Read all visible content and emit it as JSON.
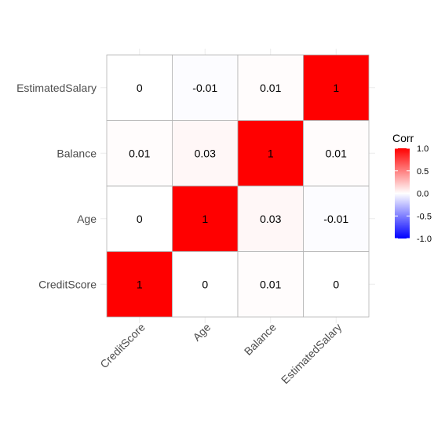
{
  "chart_data": {
    "type": "heatmap",
    "x_categories": [
      "CreditScore",
      "Age",
      "Balance",
      "EstimatedSalary"
    ],
    "y_categories": [
      "CreditScore",
      "Age",
      "Balance",
      "EstimatedSalary"
    ],
    "values": [
      [
        1,
        0,
        0.01,
        0
      ],
      [
        0,
        1,
        0.03,
        -0.01
      ],
      [
        0.01,
        0.03,
        1,
        0.01
      ],
      [
        0,
        -0.01,
        0.01,
        1
      ]
    ],
    "value_labels": [
      [
        "1",
        "0",
        "0.01",
        "0"
      ],
      [
        "0",
        "1",
        "0.03",
        "-0.01"
      ],
      [
        "0.01",
        "0.03",
        "1",
        "0.01"
      ],
      [
        "0",
        "-0.01",
        "0.01",
        "1"
      ]
    ],
    "legend": {
      "title": "Corr",
      "ticks": [
        "1.0",
        "0.5",
        "0.0",
        "-0.5",
        "-1.0"
      ],
      "tick_values": [
        1.0,
        0.5,
        0.0,
        -0.5,
        -1.0
      ],
      "range": [
        -1,
        1
      ],
      "placement": "right"
    },
    "colors": {
      "low": "#0000ff",
      "mid": "#ffffff",
      "high": "#ff0000",
      "cell_border": "#b3b3b3",
      "grid": "#ebebeb"
    },
    "xlabel": "",
    "ylabel": "",
    "grid": true
  }
}
